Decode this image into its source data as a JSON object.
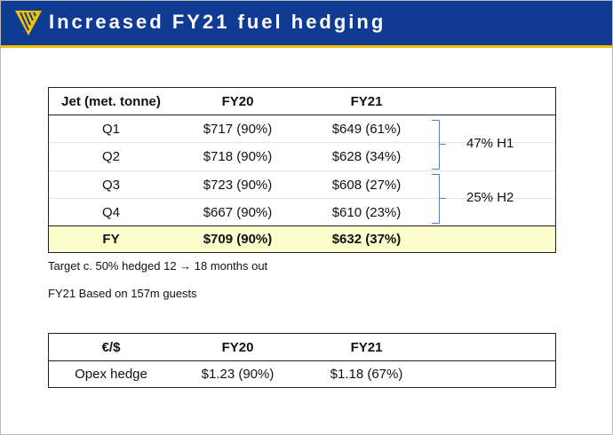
{
  "header": {
    "title": "Increased FY21 fuel hedging",
    "brand_color": "#0f3b92",
    "accent_color": "#f2c200",
    "logo_icon": "harp-logo-icon"
  },
  "fuel_table": {
    "columns": [
      "Jet (met. tonne)",
      "FY20",
      "FY21"
    ],
    "rows": [
      {
        "label": "Q1",
        "fy20": "$717 (90%)",
        "fy21": "$649 (61%)"
      },
      {
        "label": "Q2",
        "fy20": "$718 (90%)",
        "fy21": "$628 (34%)"
      },
      {
        "label": "Q3",
        "fy20": "$723 (90%)",
        "fy21": "$608 (27%)"
      },
      {
        "label": "Q4",
        "fy20": "$667 (90%)",
        "fy21": "$610 (23%)"
      }
    ],
    "total": {
      "label": "FY",
      "fy20": "$709 (90%)",
      "fy21": "$632 (37%)"
    },
    "half_labels": [
      "47% H1",
      "25% H2"
    ],
    "total_row_color": "#fdfccb"
  },
  "notes": [
    "Target c. 50% hedged 12 → 18 months out",
    "FY21 Based on 157m guests"
  ],
  "fx_table": {
    "columns": [
      "€/$",
      "FY20",
      "FY21"
    ],
    "row": {
      "label": "Opex hedge",
      "fy20": "$1.23 (90%)",
      "fy21": "$1.18 (67%)"
    }
  }
}
